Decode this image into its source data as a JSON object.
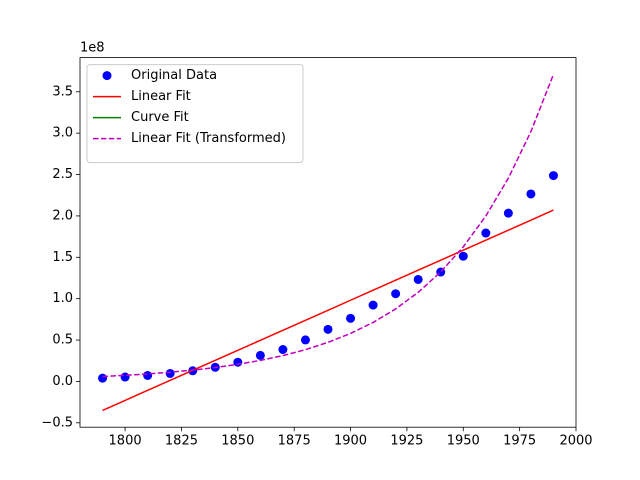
{
  "chart_data": {
    "type": "line",
    "y_offset_label": "1e8",
    "x": [
      1790,
      1800,
      1810,
      1820,
      1830,
      1840,
      1850,
      1860,
      1870,
      1880,
      1890,
      1900,
      1910,
      1920,
      1930,
      1940,
      1950,
      1960,
      1970,
      1980,
      1990
    ],
    "series": [
      {
        "name": "Original Data",
        "color": "#0000ff",
        "style": "markers",
        "values": [
          3929214,
          5308483,
          7239881,
          9638453,
          12866020,
          17069453,
          23191876,
          31443321,
          38558371,
          50189209,
          62979766,
          76212168,
          92228496,
          106021537,
          123202624,
          132164569,
          151325798,
          179323175,
          203302031,
          226542199,
          248709873
        ]
      },
      {
        "name": "Linear Fit",
        "color": "#ff0000",
        "style": "solid",
        "values": [
          -35000000,
          -22900000,
          -10800000,
          1300000,
          13400000,
          25500000,
          37600000,
          49700000,
          61800000,
          73900000,
          86000000,
          98100000,
          110200000,
          122300000,
          134400000,
          146500000,
          158600000,
          170700000,
          182800000,
          194900000,
          207000000
        ]
      },
      {
        "name": "Curve Fit",
        "color": "#008000",
        "style": "solid",
        "values": [
          null,
          null,
          null,
          null,
          null,
          null,
          null,
          null,
          null,
          null,
          null,
          null,
          null,
          null,
          null,
          null,
          null,
          null,
          null,
          null,
          null
        ]
      },
      {
        "name": "Linear Fit (Transformed)",
        "color": "#bf00bf",
        "style": "dashed",
        "values": [
          6000000,
          7370000,
          9060000,
          11100000,
          13700000,
          16800000,
          20700000,
          25400000,
          31200000,
          38400000,
          47200000,
          58000000,
          71300000,
          87600000,
          107700000,
          132300000,
          162600000,
          199900000,
          245600000,
          301900000,
          371000000
        ]
      }
    ],
    "xlim": [
      1780,
      2000
    ],
    "xticks": [
      1800,
      1825,
      1850,
      1875,
      1900,
      1925,
      1950,
      1975,
      2000
    ],
    "ylim": [
      -55300000,
      391300000
    ],
    "yticks": [
      {
        "value": -50000000,
        "label": "−0.5"
      },
      {
        "value": 0,
        "label": "0.0"
      },
      {
        "value": 50000000,
        "label": "0.5"
      },
      {
        "value": 100000000,
        "label": "1.0"
      },
      {
        "value": 150000000,
        "label": "1.5"
      },
      {
        "value": 200000000,
        "label": "2.0"
      },
      {
        "value": 250000000,
        "label": "2.5"
      },
      {
        "value": 300000000,
        "label": "3.0"
      },
      {
        "value": 350000000,
        "label": "3.5"
      }
    ],
    "legend": "upper left",
    "grid": false
  }
}
